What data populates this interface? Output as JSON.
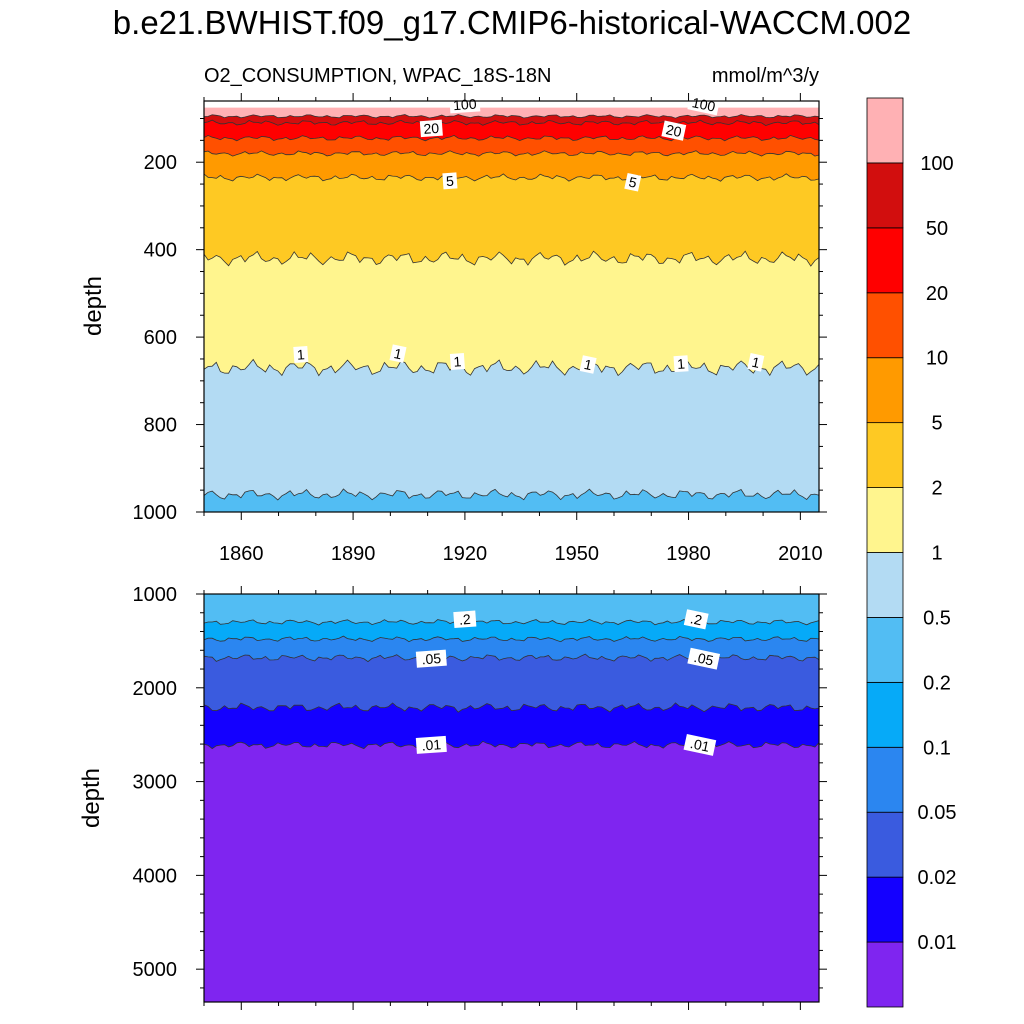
{
  "figure_title": "b.e21.BWHIST.f09_g17.CMIP6-historical-WACCM.002",
  "colors": {
    "levels": [
      "#7f25f0",
      "#1400ff",
      "#3a5bdf",
      "#2b86f0",
      "#06aaf8",
      "#52bdf3",
      "#b3dbf3",
      "#fff58e",
      "#fec923",
      "#ff9a00",
      "#ff5000",
      "#ff0000",
      "#d20e0e",
      "#ffb1b4"
    ],
    "contour_line": "#333333"
  },
  "chart_data": [
    {
      "type": "heatmap",
      "panel": "upper",
      "left_title": "O2_CONSUMPTION, WPAC_18S-18N",
      "right_title": "mmol/m^3/y",
      "ylabel": "depth",
      "xlabel": "",
      "x_range": [
        1850,
        2015
      ],
      "y_range": [
        60,
        1000
      ],
      "y_inverted": true,
      "x_ticks": [
        1860,
        1890,
        1920,
        1950,
        1980,
        2010
      ],
      "x_tick_labels": [
        "1860",
        "1890",
        "1920",
        "1950",
        "1980",
        "2010"
      ],
      "y_ticks": [
        200,
        400,
        600,
        800,
        1000
      ],
      "y_tick_labels": [
        "200",
        "400",
        "600",
        "800",
        "1000"
      ],
      "contour_levels": [
        0.2,
        0.5,
        1,
        2,
        5,
        10,
        20,
        50,
        100
      ],
      "contour_depths_m": [
        1000,
        960,
        670,
        420,
        235,
        180,
        145,
        110,
        95,
        75
      ],
      "contour_labels": [
        {
          "text": "100",
          "year": 1920,
          "depth": 70
        },
        {
          "text": "100",
          "year": 1984,
          "depth": 70
        },
        {
          "text": "20",
          "year": 1911,
          "depth": 125
        },
        {
          "text": "20",
          "year": 1976,
          "depth": 130
        },
        {
          "text": "5",
          "year": 1916,
          "depth": 245
        },
        {
          "text": "5",
          "year": 1965,
          "depth": 248
        },
        {
          "text": "1",
          "year": 1876,
          "depth": 642
        },
        {
          "text": "1",
          "year": 1902,
          "depth": 640
        },
        {
          "text": "1",
          "year": 1918,
          "depth": 658
        },
        {
          "text": "1",
          "year": 1953,
          "depth": 665
        },
        {
          "text": "1",
          "year": 1978,
          "depth": 663
        },
        {
          "text": "1",
          "year": 1998,
          "depth": 660
        }
      ]
    },
    {
      "type": "heatmap",
      "panel": "lower",
      "left_title": "",
      "right_title": "",
      "ylabel": "depth",
      "xlabel": "",
      "x_range": [
        1850,
        2015
      ],
      "y_range": [
        1000,
        5350
      ],
      "y_inverted": true,
      "x_ticks": [
        1860,
        1890,
        1920,
        1950,
        1980,
        2010
      ],
      "y_ticks": [
        1000,
        2000,
        3000,
        4000,
        5000
      ],
      "y_tick_labels": [
        "1000",
        "2000",
        "3000",
        "4000",
        "5000"
      ],
      "contour_levels": [
        0.01,
        0.02,
        0.05,
        0.1,
        0.2,
        0.5
      ],
      "contour_depths_m": [
        5350,
        2610,
        2210,
        1680,
        1480,
        1300,
        1000
      ],
      "contour_labels": [
        {
          "text": ".2",
          "year": 1920,
          "depth": 1280
        },
        {
          "text": ".2",
          "year": 1982,
          "depth": 1280
        },
        {
          "text": ".05",
          "year": 1911,
          "depth": 1700
        },
        {
          "text": ".05",
          "year": 1984,
          "depth": 1700
        },
        {
          "text": ".01",
          "year": 1911,
          "depth": 2620
        },
        {
          "text": ".01",
          "year": 1983,
          "depth": 2620
        }
      ]
    }
  ],
  "colorbar": {
    "labels": [
      "0.01",
      "0.02",
      "0.05",
      "0.1",
      "0.2",
      "0.5",
      "1",
      "2",
      "5",
      "10",
      "20",
      "50",
      "100"
    ]
  }
}
